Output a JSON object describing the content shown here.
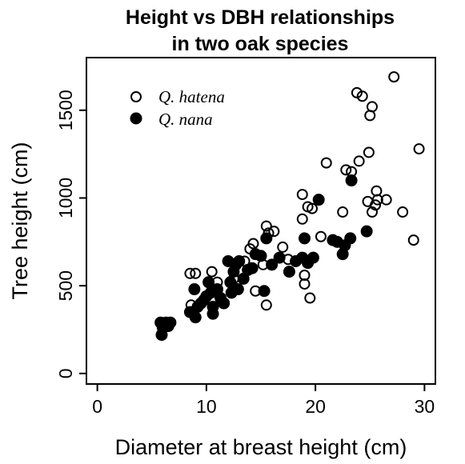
{
  "chart_data": {
    "type": "scatter",
    "title": "Height vs DBH relationships\nin two oak species",
    "title_lines": [
      "Height vs DBH relationships",
      "in two oak species"
    ],
    "xlabel": "Diameter at breast height (cm)",
    "ylabel": "Tree height (cm)",
    "xlim": [
      -1,
      31
    ],
    "ylim": [
      -60,
      1800
    ],
    "xticks": [
      0,
      10,
      20,
      30
    ],
    "yticks": [
      0,
      500,
      1000,
      1500
    ],
    "xtick_labels": [
      "0",
      "10",
      "20",
      "30"
    ],
    "ytick_labels": [
      "0",
      "500",
      "1000",
      "1500"
    ],
    "grid": false,
    "legend_position": "top-left",
    "series": [
      {
        "name": "Q. hatena",
        "marker": "open-circle",
        "color": "#000000",
        "points": [
          [
            8.5,
            570
          ],
          [
            9,
            570
          ],
          [
            8.6,
            390
          ],
          [
            10.5,
            580
          ],
          [
            11,
            520
          ],
          [
            12.5,
            540
          ],
          [
            13.5,
            640
          ],
          [
            14,
            710
          ],
          [
            14.3,
            740
          ],
          [
            14.5,
            470
          ],
          [
            15.2,
            620
          ],
          [
            15.5,
            840
          ],
          [
            15.5,
            390
          ],
          [
            15.7,
            800
          ],
          [
            16.2,
            810
          ],
          [
            17,
            720
          ],
          [
            18.8,
            1020
          ],
          [
            18.8,
            880
          ],
          [
            19.3,
            950
          ],
          [
            19.5,
            430
          ],
          [
            19,
            510
          ],
          [
            19.7,
            940
          ],
          [
            21,
            1200
          ],
          [
            22.5,
            920
          ],
          [
            22.8,
            1160
          ],
          [
            23.3,
            1150
          ],
          [
            23.8,
            1600
          ],
          [
            24,
            1210
          ],
          [
            24.3,
            1580
          ],
          [
            24.8,
            980
          ],
          [
            24.9,
            1260
          ],
          [
            25,
            1470
          ],
          [
            25.2,
            1520
          ],
          [
            25.2,
            920
          ],
          [
            25.5,
            960
          ],
          [
            25.6,
            1040
          ],
          [
            25.7,
            990
          ],
          [
            26.5,
            990
          ],
          [
            27.2,
            1690
          ],
          [
            28,
            920
          ],
          [
            29,
            760
          ],
          [
            29.5,
            1280
          ],
          [
            19,
            560
          ],
          [
            17.5,
            650
          ],
          [
            20.5,
            780
          ]
        ]
      },
      {
        "name": "Q. nana",
        "marker": "filled-circle",
        "color": "#000000",
        "points": [
          [
            5.8,
            290
          ],
          [
            5.9,
            220
          ],
          [
            6,
            260
          ],
          [
            6.3,
            290
          ],
          [
            6.5,
            270
          ],
          [
            6.7,
            290
          ],
          [
            8.5,
            350
          ],
          [
            8.9,
            480
          ],
          [
            9,
            320
          ],
          [
            9.2,
            380
          ],
          [
            9.5,
            400
          ],
          [
            9.8,
            420
          ],
          [
            10,
            440
          ],
          [
            10.2,
            520
          ],
          [
            10.4,
            460
          ],
          [
            10.6,
            380
          ],
          [
            10.6,
            340
          ],
          [
            11,
            480
          ],
          [
            11.3,
            430
          ],
          [
            11.6,
            400
          ],
          [
            12,
            640
          ],
          [
            12.2,
            520
          ],
          [
            12.3,
            460
          ],
          [
            12.5,
            580
          ],
          [
            12.7,
            620
          ],
          [
            12.9,
            480
          ],
          [
            13,
            640
          ],
          [
            13.4,
            540
          ],
          [
            13.8,
            590
          ],
          [
            14.2,
            600
          ],
          [
            14.5,
            680
          ],
          [
            15,
            670
          ],
          [
            15.3,
            470
          ],
          [
            15.5,
            770
          ],
          [
            16,
            620
          ],
          [
            16.7,
            660
          ],
          [
            17.6,
            580
          ],
          [
            18.2,
            640
          ],
          [
            18.8,
            660
          ],
          [
            19,
            770
          ],
          [
            19.3,
            630
          ],
          [
            19.8,
            660
          ],
          [
            20.3,
            990
          ],
          [
            21.6,
            760
          ],
          [
            22,
            750
          ],
          [
            22.5,
            680
          ],
          [
            22.7,
            730
          ],
          [
            23.2,
            770
          ],
          [
            23.3,
            1100
          ],
          [
            24.7,
            810
          ]
        ]
      }
    ]
  }
}
